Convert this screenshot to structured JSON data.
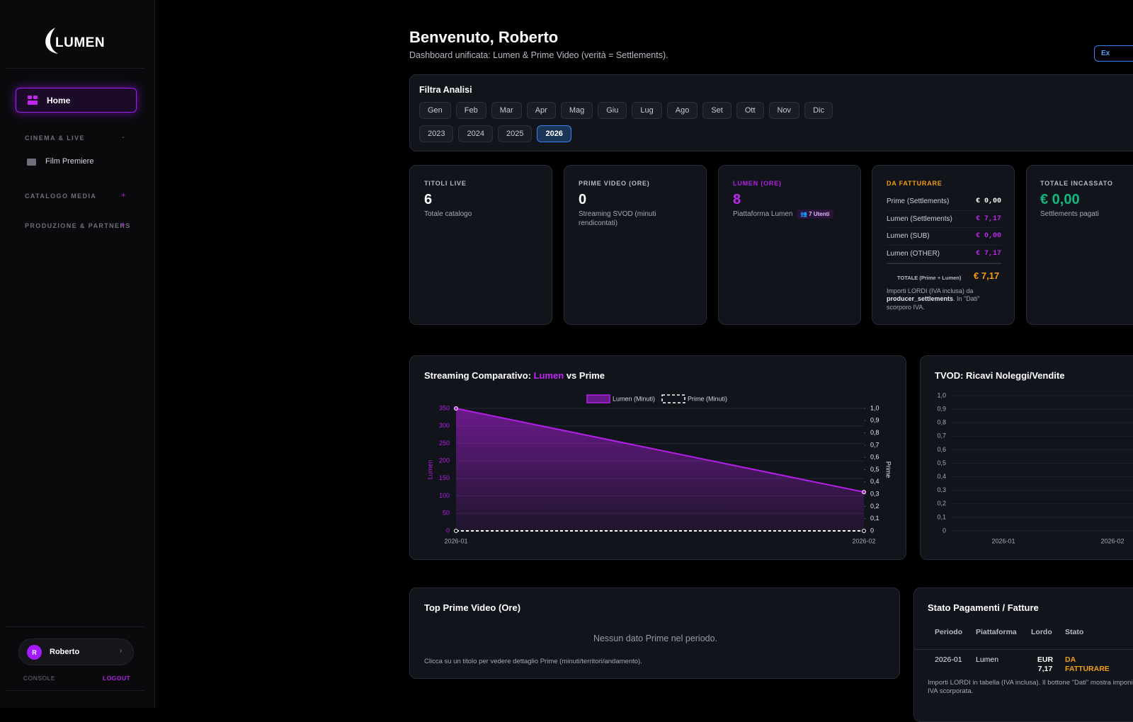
{
  "sidebar": {
    "logo": "LUMEN",
    "home": "Home",
    "sections": [
      {
        "label": "CINEMA & LIVE",
        "toggle": "-"
      },
      {
        "label": "CATALOGO MEDIA",
        "toggle": "+"
      },
      {
        "label": "PRODUZIONE & PARTNERS",
        "toggle": "+"
      }
    ],
    "film_premiere": "Film Premiere",
    "user": {
      "initial": "R",
      "name": "Roberto",
      "chevron": "›"
    },
    "console": "CONSOLE",
    "logout": "LOGOUT"
  },
  "header": {
    "title": "Benvenuto, Roberto",
    "subtitle": "Dashboard unificata: Lumen & Prime Video (verità = Settlements).",
    "button": "Ex"
  },
  "filter": {
    "title": "Filtra Analisi",
    "months": [
      "Gen",
      "Feb",
      "Mar",
      "Apr",
      "Mag",
      "Giu",
      "Lug",
      "Ago",
      "Set",
      "Ott",
      "Nov",
      "Dic"
    ],
    "years": [
      "2023",
      "2024",
      "2025",
      "2026"
    ],
    "active_year": "2026"
  },
  "kpis": {
    "titoli": {
      "label": "TITOLI LIVE",
      "value": 6,
      "caption": "Totale catalogo"
    },
    "prime": {
      "label": "PRIME VIDEO (ORE)",
      "value": 0,
      "caption": "Streaming SVOD (minuti rendicontati)"
    },
    "lumen": {
      "label": "LUMEN (ORE)",
      "value": 8,
      "caption": "Piattaforma Lumen",
      "badge": "👥 7 Utenti"
    },
    "fatturare": {
      "label": "DA FATTURARE",
      "rows": [
        [
          "Prime (Settlements)",
          "€ 0,00"
        ],
        [
          "Lumen (Settlements)",
          "€ 7,17"
        ],
        [
          "Lumen (SUB)",
          "€ 0,00"
        ],
        [
          "Lumen (OTHER)",
          "€ 7,17"
        ]
      ],
      "total_label": "TOTALE (Prime + Lumen)",
      "total": "€ 7,17",
      "note": [
        "Importi LORDI (IVA inclusa) da ",
        "producer_settlements",
        ". In \"Dati\" scorporo IVA."
      ]
    },
    "incassato": {
      "label": "TOTALE INCASSATO",
      "value": "€ 0,00",
      "caption": "Settlements pagati"
    }
  },
  "streaming_chart": {
    "type": "line",
    "title": [
      "Streaming Comparativo: ",
      "Lumen",
      " vs Prime"
    ],
    "categories": [
      "2026-01",
      "2026-02"
    ],
    "series": [
      {
        "name": "Lumen (Minuti)",
        "color": "#b31fe6",
        "values": [
          350,
          111
        ],
        "axis": "y"
      },
      {
        "name": "Prime (Minuti)",
        "color": "#ffffff",
        "values": [
          0,
          0
        ],
        "axis": "y2"
      }
    ],
    "ylabel": "Lumen",
    "y2label": "Prime",
    "ylim": [
      0,
      350
    ],
    "yticks": [
      0,
      50,
      100,
      150,
      200,
      250,
      300,
      350
    ],
    "y2lim": [
      0,
      1
    ],
    "y2ticks": [
      0,
      {
        "value": 0.1,
        "label": "0,1"
      },
      {
        "value": 0.2,
        "label": "0,2"
      },
      {
        "value": 0.3,
        "label": "0,3"
      },
      {
        "value": 0.4,
        "label": "0,4"
      },
      {
        "value": 0.5,
        "label": "0,5"
      },
      {
        "value": 0.6,
        "label": "0,6"
      },
      {
        "value": 0.7,
        "label": "0,7"
      },
      {
        "value": 0.8,
        "label": "0,8"
      },
      {
        "value": 0.9,
        "label": "0,9"
      },
      {
        "value": 1,
        "label": "1,0"
      }
    ],
    "grid": true
  },
  "tvod_chart": {
    "type": "line",
    "title": "TVOD: Ricavi Noleggi/Vendite",
    "categories": [
      "2026-01",
      "2026-02"
    ],
    "series": [],
    "ylim": [
      0,
      1
    ],
    "yticks": [
      0,
      {
        "value": 0.1,
        "label": "0,1"
      },
      {
        "value": 0.2,
        "label": "0,2"
      },
      {
        "value": 0.3,
        "label": "0,3"
      },
      {
        "value": 0.4,
        "label": "0,4"
      },
      {
        "value": 0.5,
        "label": "0,5"
      },
      {
        "value": 0.6,
        "label": "0,6"
      },
      {
        "value": 0.7,
        "label": "0,7"
      },
      {
        "value": 0.8,
        "label": "0,8"
      },
      {
        "value": 0.9,
        "label": "0,9"
      },
      {
        "value": 1,
        "label": "1,0"
      }
    ],
    "grid": true
  },
  "top_prime": {
    "title": "Top Prime Video (Ore)",
    "empty": "Nessun dato Prime nel periodo.",
    "hint": "Clicca su un titolo per vedere dettaglio Prime (minuti/territori/andamento)."
  },
  "payments": {
    "title": "Stato Pagamenti / Fatture",
    "columns": [
      "Periodo",
      "Piattaforma",
      "Lordo",
      "Stato"
    ],
    "rows": [
      [
        "2026-01",
        "Lumen",
        "EUR 7,17",
        "DA FATTURARE"
      ]
    ],
    "note": "Importi LORDI in tabella (IVA inclusa). Il bottone \"Dati\" mostra imponibile + IVA scorporata."
  }
}
